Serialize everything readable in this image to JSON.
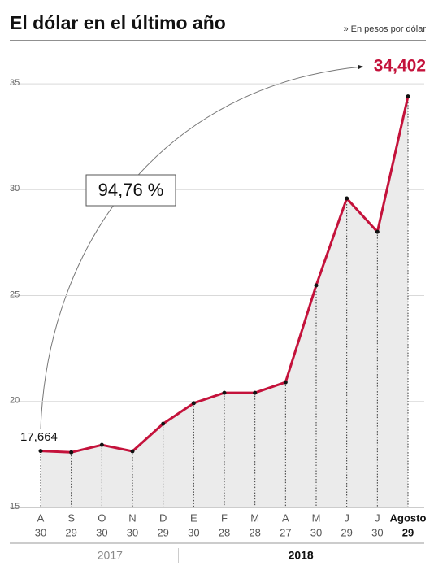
{
  "chart_data": {
    "type": "line",
    "title": "El dólar en el último año",
    "subtitle": "» En pesos por dólar",
    "annotation": "94,76 %",
    "categories": [
      "A",
      "S",
      "O",
      "N",
      "D",
      "E",
      "F",
      "M",
      "A",
      "M",
      "J",
      "J",
      "Agosto"
    ],
    "category_days": [
      "30",
      "29",
      "30",
      "30",
      "29",
      "30",
      "28",
      "28",
      "27",
      "30",
      "29",
      "30",
      "29"
    ],
    "year_groups": [
      {
        "label": "2017",
        "count": 5
      },
      {
        "label": "2018",
        "count": 8
      }
    ],
    "values": [
      17.664,
      17.6,
      17.95,
      17.65,
      18.95,
      19.92,
      20.41,
      20.41,
      20.91,
      25.48,
      29.59,
      28.01,
      34.402
    ],
    "value_labels": [
      "17,664",
      null,
      null,
      null,
      null,
      null,
      null,
      null,
      null,
      null,
      null,
      null,
      "34,402"
    ],
    "color": "#c4123b",
    "ylim": [
      15,
      36.5
    ],
    "yticks": [
      15,
      20,
      25,
      30,
      35
    ],
    "grid": true
  }
}
